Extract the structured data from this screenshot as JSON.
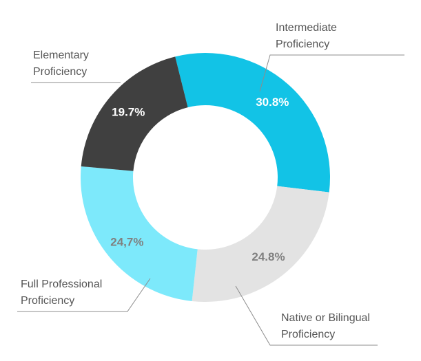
{
  "chart_data": {
    "type": "pie",
    "variant": "donut",
    "title": "",
    "legend": "none",
    "slices": [
      {
        "key": "intermediate",
        "label_lines": [
          "Intermediate",
          "Proficiency"
        ],
        "value": 30.8,
        "value_label": "30.8%",
        "color": "#12c3e6",
        "value_label_color": "#ffffff"
      },
      {
        "key": "native",
        "label_lines": [
          "Native or Bilingual",
          "Proficiency"
        ],
        "value": 24.8,
        "value_label": "24.8%",
        "color": "#e3e3e3",
        "value_label_color": "#808080"
      },
      {
        "key": "full",
        "label_lines": [
          "Full Professional",
          "Proficiency"
        ],
        "value": 24.7,
        "value_label": "24,7%",
        "color": "#7de9fb",
        "value_label_color": "#808080"
      },
      {
        "key": "elementary",
        "label_lines": [
          "Elementary",
          "Proficiency"
        ],
        "value": 19.7,
        "value_label": "19.7%",
        "color": "#404040",
        "value_label_color": "#ffffff"
      }
    ]
  }
}
